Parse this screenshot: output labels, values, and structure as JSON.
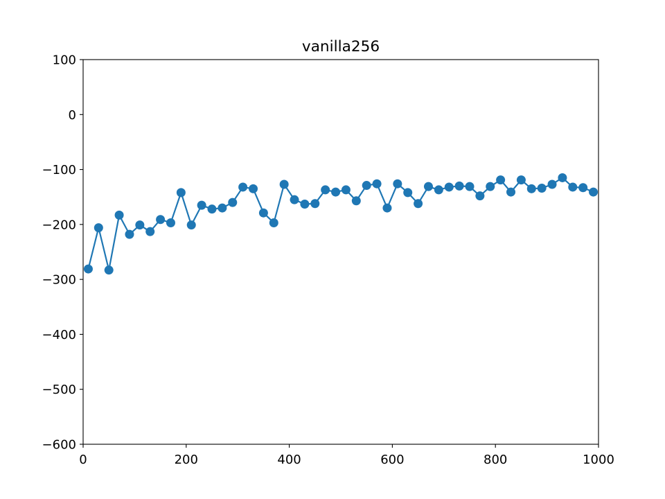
{
  "chart_data": {
    "type": "line",
    "title": "vanilla256",
    "xlabel": "",
    "ylabel": "",
    "xlim": [
      0,
      1000
    ],
    "ylim": [
      -600,
      100
    ],
    "xticks": [
      0,
      200,
      400,
      600,
      800,
      1000
    ],
    "yticks": [
      100,
      0,
      -100,
      -200,
      -300,
      -400,
      -500,
      -600
    ],
    "xtick_labels": [
      "0",
      "200",
      "400",
      "600",
      "800",
      "1000"
    ],
    "ytick_labels": [
      "100",
      "0",
      "−100",
      "−200",
      "−300",
      "−400",
      "−500",
      "−600"
    ],
    "grid": false,
    "legend": "none",
    "series": [
      {
        "color": "#1f77b4",
        "marker": "circle",
        "x": [
          10,
          30,
          50,
          70,
          90,
          110,
          130,
          150,
          170,
          190,
          210,
          230,
          250,
          270,
          290,
          310,
          330,
          350,
          370,
          390,
          410,
          430,
          450,
          470,
          490,
          510,
          530,
          550,
          570,
          590,
          610,
          630,
          650,
          670,
          690,
          710,
          730,
          750,
          770,
          790,
          810,
          830,
          850,
          870,
          890,
          910,
          930,
          950,
          970,
          990
        ],
        "y": [
          -281,
          -206,
          -283,
          -183,
          -218,
          -201,
          -213,
          -191,
          -197,
          -142,
          -201,
          -165,
          -172,
          -170,
          -160,
          -132,
          -135,
          -179,
          -197,
          -127,
          -155,
          -163,
          -162,
          -137,
          -141,
          -137,
          -157,
          -129,
          -126,
          -170,
          -126,
          -142,
          -162,
          -131,
          -137,
          -132,
          -130,
          -131,
          -148,
          -131,
          -119,
          -141,
          -119,
          -135,
          -134,
          -127,
          -115,
          -132,
          -133,
          -141
        ]
      }
    ]
  }
}
